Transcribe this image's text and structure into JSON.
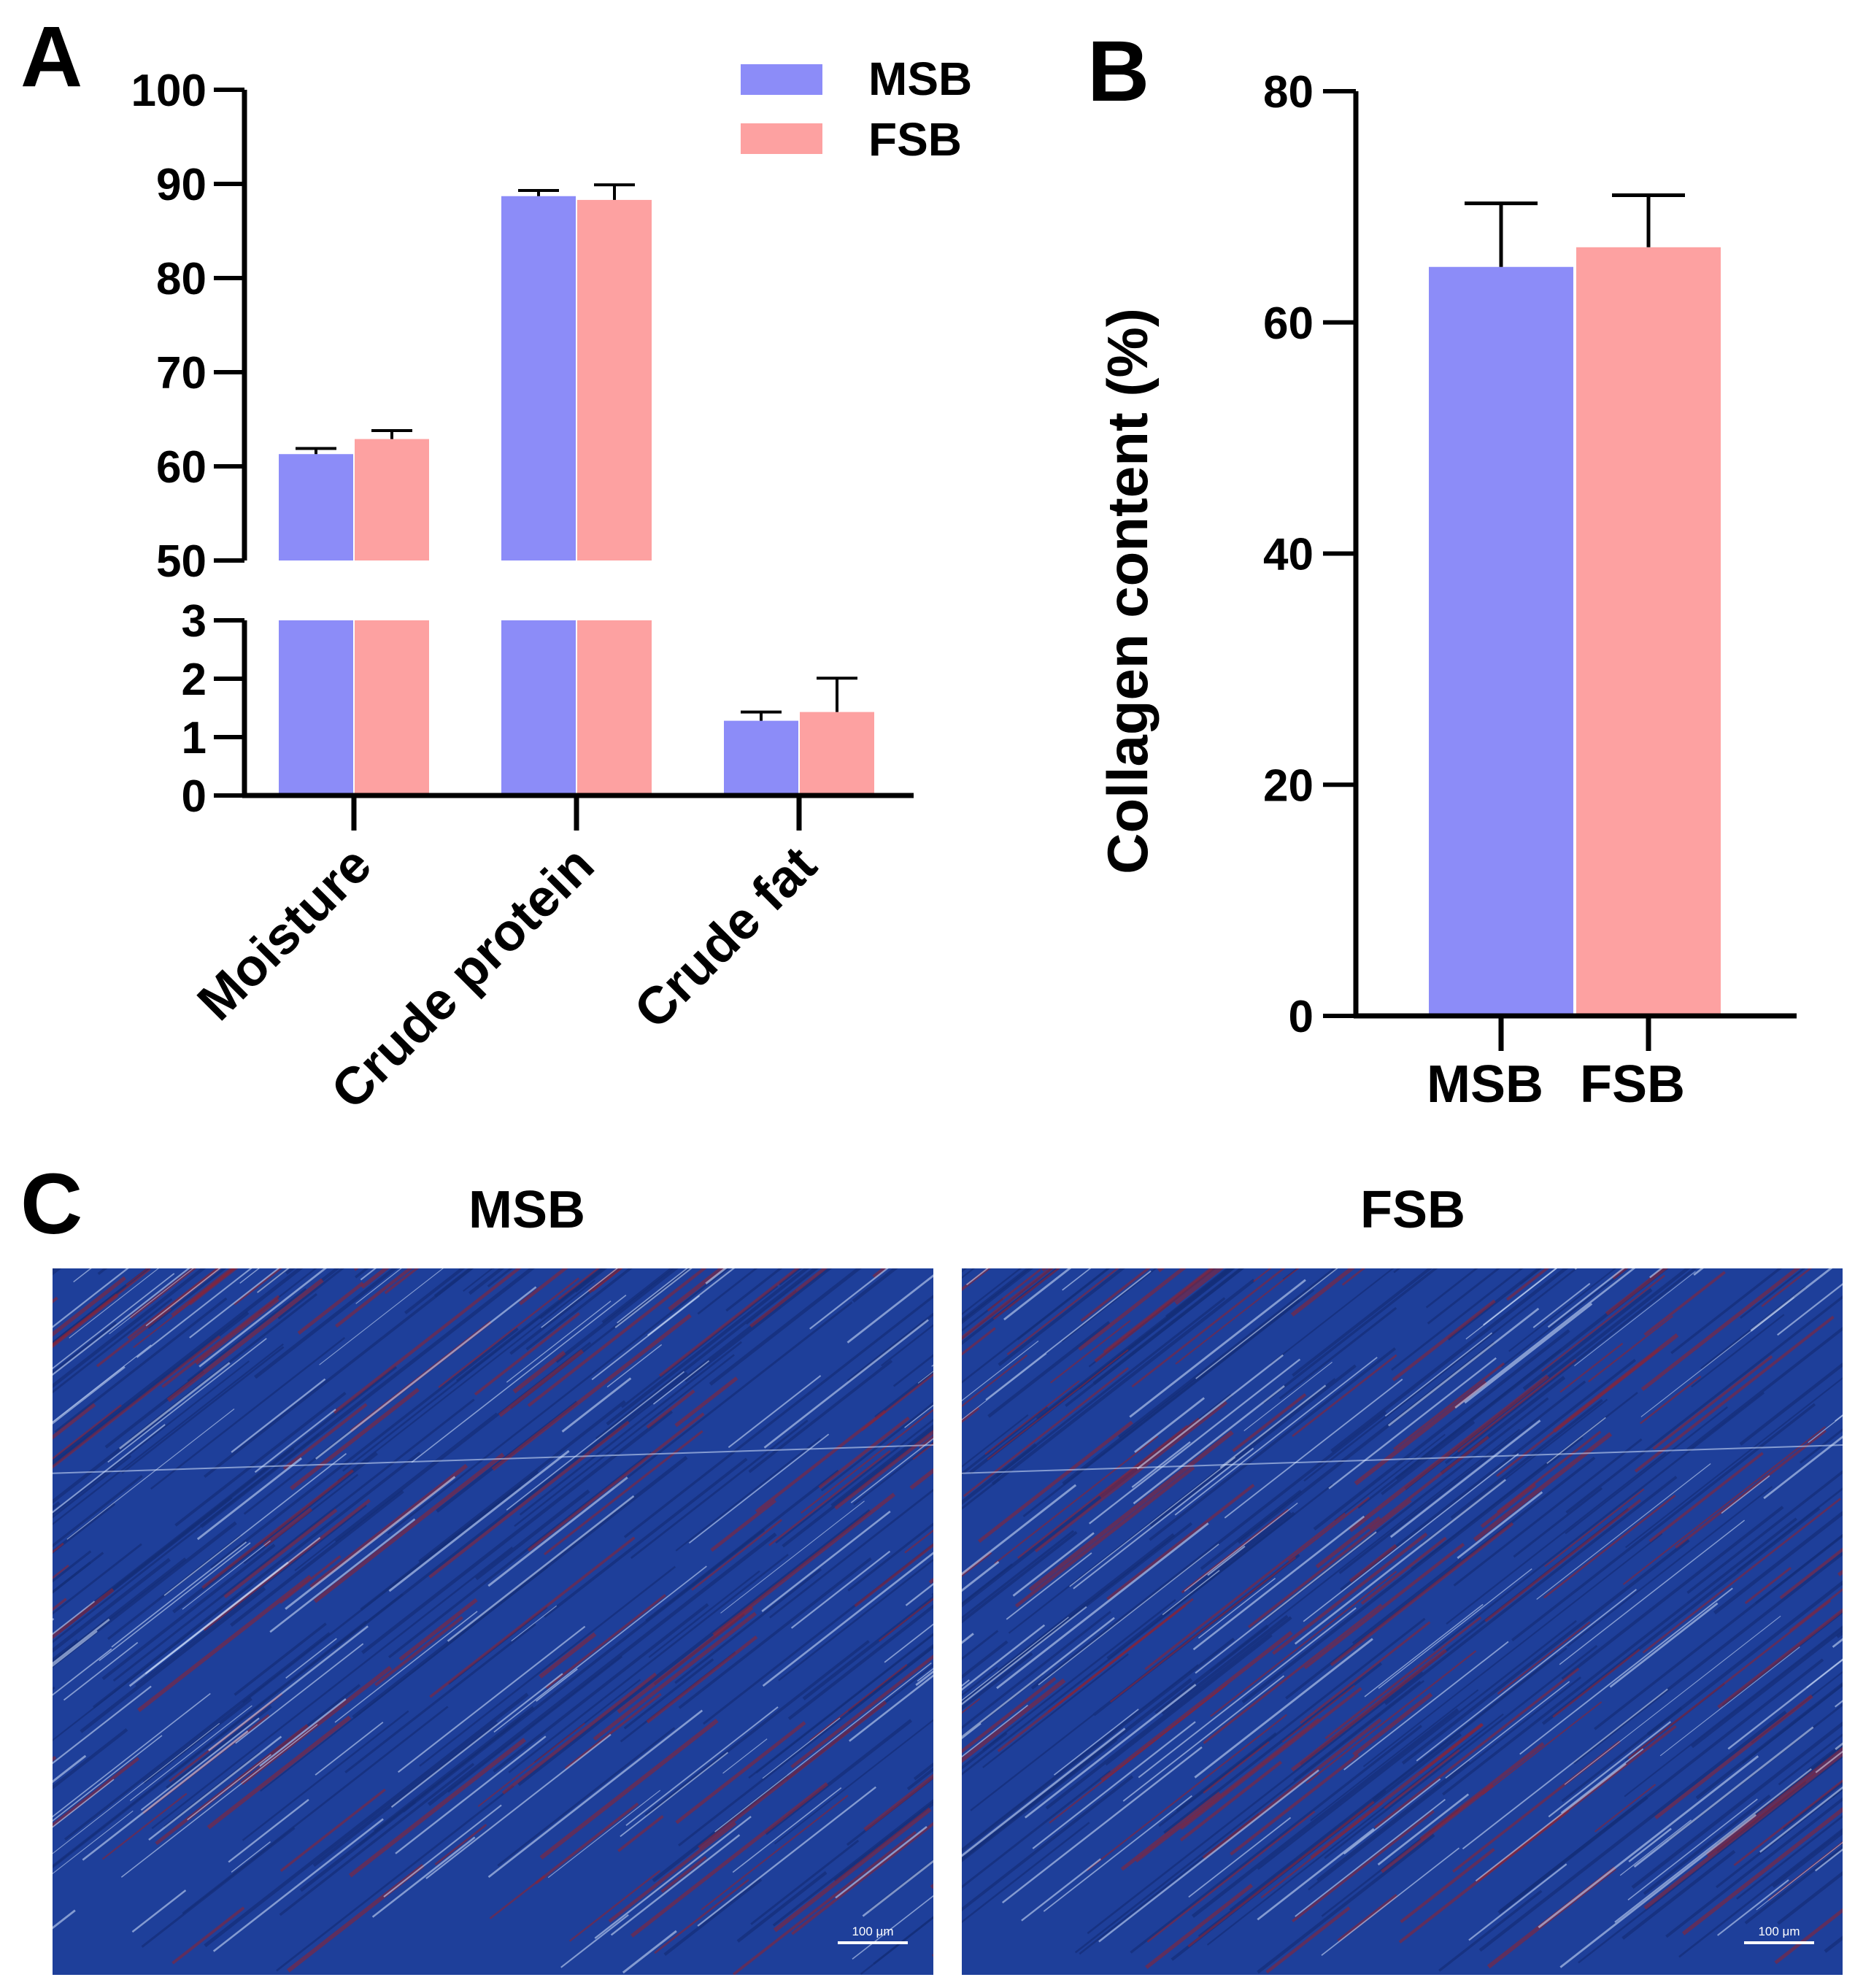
{
  "panels": [
    {
      "letter": "A"
    },
    {
      "letter": "B"
    },
    {
      "letter": "C"
    }
  ],
  "colors": {
    "msb": "#8c8cf8",
    "fsb": "#fda1a1",
    "axis": "#000000",
    "tissue_base": "#1e3f9a",
    "tissue_red": "#8a2336",
    "tissue_light": "#d8e8ff"
  },
  "micrographs": {
    "titles": [
      "MSB",
      "FSB"
    ],
    "scale_bar_text": "100 μm",
    "description_icon": "masson-trichrome-micrograph"
  },
  "chart_data": [
    {
      "type": "bar",
      "panel": "A",
      "broken_y_axis": true,
      "lower_ylim": [
        0,
        3
      ],
      "upper_ylim": [
        50,
        100
      ],
      "lower_yticks": [
        0,
        1,
        2,
        3
      ],
      "upper_yticks": [
        50,
        60,
        70,
        80,
        90,
        100
      ],
      "categories": [
        "Moisture",
        "Crude protein",
        "Crude fat"
      ],
      "series": [
        {
          "name": "MSB",
          "values": [
            61.3,
            88.7,
            1.28
          ],
          "errors": [
            0.6,
            0.6,
            0.15
          ]
        },
        {
          "name": "FSB",
          "values": [
            62.9,
            88.3,
            1.43
          ],
          "errors": [
            0.9,
            1.6,
            0.58
          ]
        }
      ],
      "legend": {
        "placement": "top-right",
        "entries": [
          "MSB",
          "FSB"
        ]
      },
      "xlabel": "",
      "ylabel": ""
    },
    {
      "type": "bar",
      "panel": "B",
      "categories": [
        "MSB",
        "FSB"
      ],
      "values": [
        64.8,
        66.5
      ],
      "errors": [
        5.5,
        4.5
      ],
      "ylim": [
        0,
        80
      ],
      "yticks": [
        0,
        20,
        40,
        60,
        80
      ],
      "ylabel": "Collagen content (%)",
      "xlabel": ""
    }
  ]
}
